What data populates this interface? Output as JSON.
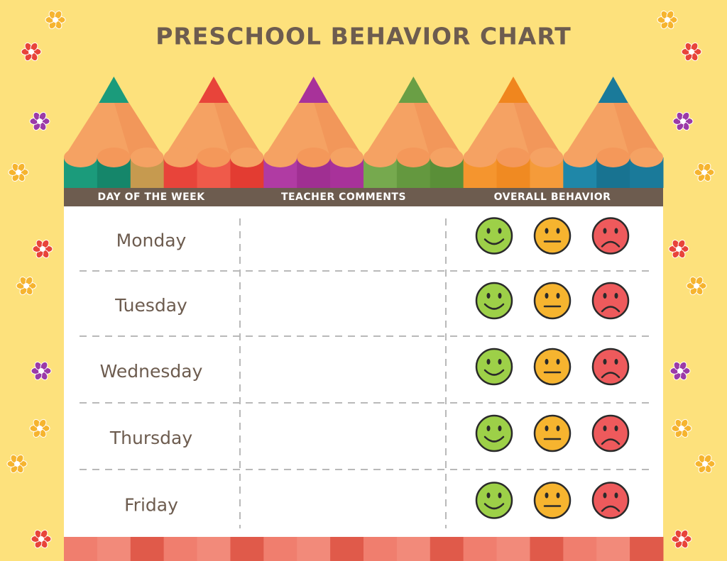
{
  "title": "PRESCHOOL BEHAVIOR CHART",
  "table": {
    "headers": [
      "DAY OF THE WEEK",
      "TEACHER COMMENTS",
      "OVERALL BEHAVIOR"
    ],
    "days": [
      "Monday",
      "Tuesday",
      "Wednesday",
      "Thursday",
      "Friday"
    ]
  }
}
